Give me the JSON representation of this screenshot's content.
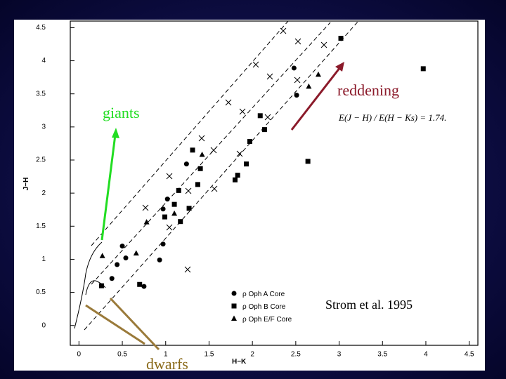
{
  "chart_data": {
    "type": "scatter",
    "x_label": "H−K",
    "y_label": "J−H",
    "xlim": [
      -0.1,
      4.6
    ],
    "ylim": [
      -0.3,
      4.6
    ],
    "xticks": [
      0,
      0.5,
      1,
      1.5,
      2,
      2.5,
      3,
      3.5,
      4,
      4.5
    ],
    "yticks": [
      0,
      0.5,
      1,
      1.5,
      2,
      2.5,
      3,
      3.5,
      4,
      4.5
    ],
    "legend": "lower right",
    "series": [
      {
        "name": "ρ Oph A Core",
        "marker": "circle",
        "color": "#000000",
        "x": [
          2.48,
          2.51,
          1.24,
          1.02,
          0.97,
          0.93,
          0.97,
          0.44,
          0.38,
          0.5,
          0.75,
          0.54
        ],
        "values": [
          3.89,
          3.48,
          2.44,
          1.91,
          1.76,
          0.99,
          1.23,
          0.92,
          0.71,
          1.2,
          0.59,
          1.02
        ]
      },
      {
        "name": "ρ Oph B Core",
        "marker": "square",
        "color": "#000000",
        "x": [
          1.31,
          1.4,
          1.83,
          1.93,
          1.97,
          2.14,
          2.09,
          1.8,
          1.37,
          1.27,
          1.1,
          1.15,
          2.64,
          3.02,
          3.97,
          0.7,
          0.26,
          1.17,
          0.99
        ],
        "values": [
          2.65,
          2.37,
          2.27,
          2.44,
          2.78,
          2.96,
          3.17,
          2.2,
          2.13,
          1.77,
          1.83,
          2.04,
          2.48,
          4.34,
          3.88,
          0.62,
          0.6,
          1.57,
          1.64
        ]
      },
      {
        "name": "ρ Oph E/F Core",
        "marker": "triangle",
        "color": "#000000",
        "x": [
          2.76,
          2.65,
          0.27,
          0.78,
          0.66,
          1.1,
          1.42
        ],
        "values": [
          3.79,
          3.61,
          1.05,
          1.56,
          1.09,
          1.69,
          2.58
        ]
      }
    ],
    "annotations": {
      "giants": "giants",
      "dwarfs": "dwarfs",
      "reddening": "reddening",
      "equation": "E(J − H) / E(H − Ks) = 1.74.",
      "source": "Strom et al. 1995"
    }
  }
}
